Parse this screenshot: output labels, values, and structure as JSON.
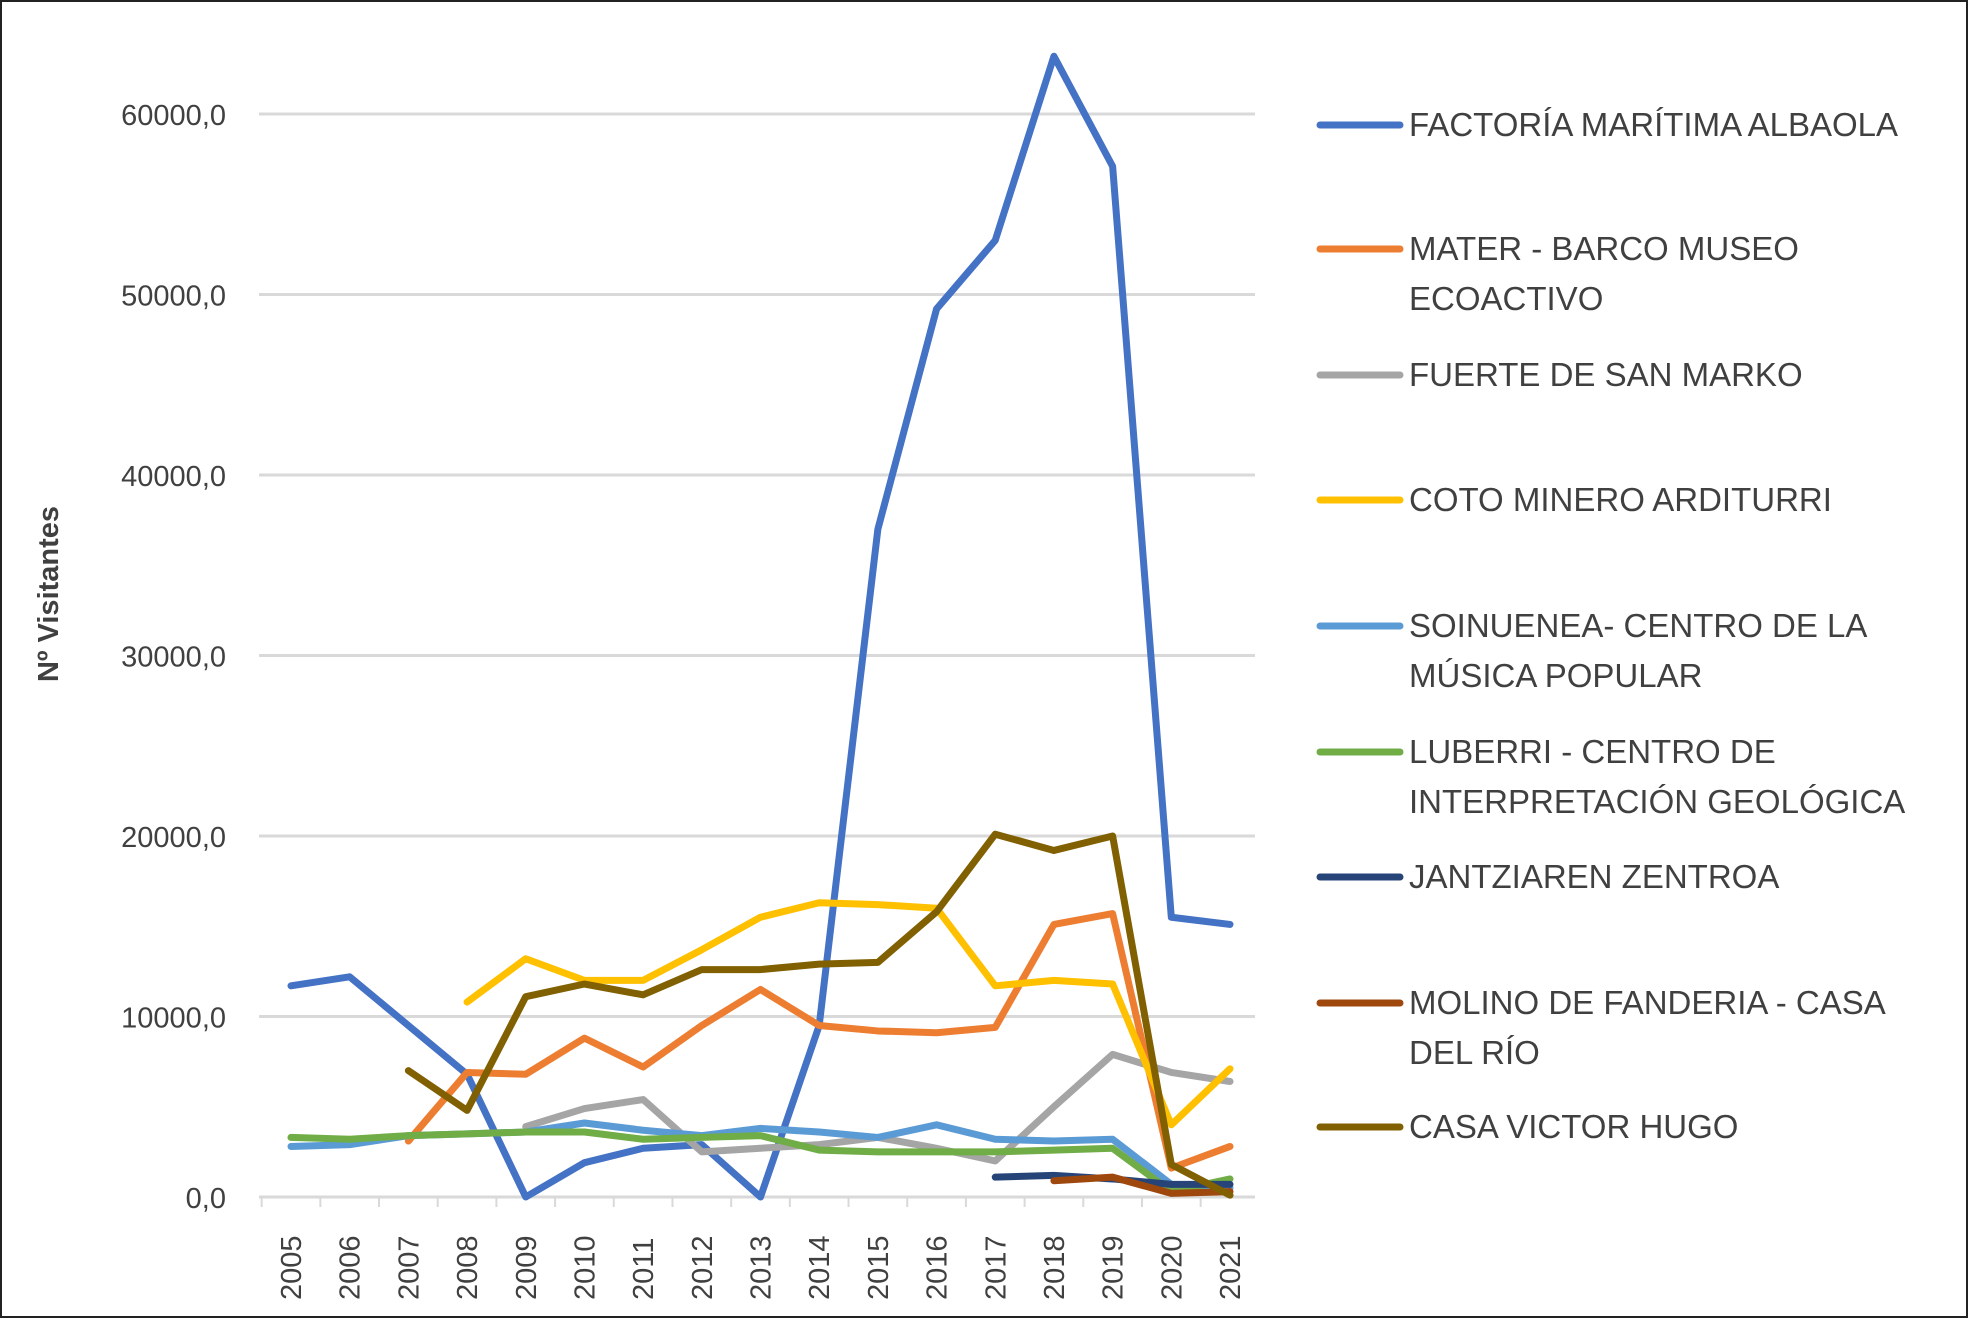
{
  "chart_data": {
    "type": "line",
    "title": "",
    "xlabel": "",
    "ylabel": "Nº Visitantes",
    "ylim": [
      0,
      63500
    ],
    "yticks": [
      "0,0",
      "10000,0",
      "20000,0",
      "30000,0",
      "40000,0",
      "50000,0",
      "60000,0"
    ],
    "ytick_values": [
      0,
      10000,
      20000,
      30000,
      40000,
      50000,
      60000
    ],
    "grid": true,
    "legend_position": "right",
    "x": [
      "2005",
      "2006",
      "2007",
      "2008",
      "2009",
      "2010",
      "2011",
      "2012",
      "2013",
      "2014",
      "2015",
      "2016",
      "2017",
      "2018",
      "2019",
      "2020",
      "2021"
    ],
    "series": [
      {
        "name": "FACTORÍA MARÍTIMA ALBAOLA",
        "color": "#4472C4",
        "values": [
          11700,
          12200,
          9500,
          6800,
          0,
          1900,
          2700,
          2900,
          0,
          9500,
          37000,
          49200,
          53000,
          63200,
          57100,
          15500,
          15100
        ]
      },
      {
        "name": "MATER - BARCO MUSEO ECOACTIVO",
        "color": "#ED7D31",
        "values": [
          null,
          null,
          3100,
          6900,
          6800,
          8800,
          7200,
          9500,
          11500,
          9500,
          9200,
          9100,
          9400,
          15100,
          15700,
          1600,
          2800
        ]
      },
      {
        "name": "FUERTE DE SAN MARKO",
        "color": "#A5A5A5",
        "values": [
          null,
          null,
          null,
          null,
          3900,
          4900,
          5400,
          2500,
          2700,
          2900,
          3300,
          2700,
          2000,
          5000,
          7900,
          6900,
          6400
        ]
      },
      {
        "name": "COTO MINERO ARDITURRI",
        "color": "#FFC000",
        "values": [
          null,
          null,
          null,
          10800,
          13200,
          12000,
          12000,
          13700,
          15500,
          16300,
          16200,
          16000,
          11700,
          12000,
          11800,
          4000,
          7100
        ]
      },
      {
        "name": "SOINUENEA- CENTRO DE LA MÚSICA POPULAR",
        "color": "#5B9BD5",
        "values": [
          2800,
          2900,
          3400,
          3500,
          3600,
          4100,
          3700,
          3400,
          3800,
          3600,
          3300,
          4000,
          3200,
          3100,
          3200,
          700,
          500
        ]
      },
      {
        "name": "LUBERRI - CENTRO DE INTERPRETACIÓN GEOLÓGICA",
        "color": "#70AD47",
        "values": [
          3300,
          3200,
          3400,
          3500,
          3600,
          3600,
          3200,
          3300,
          3400,
          2600,
          2500,
          2500,
          2500,
          2600,
          2700,
          300,
          1000
        ]
      },
      {
        "name": "JANTZIAREN ZENTROA",
        "color": "#264478",
        "values": [
          null,
          null,
          null,
          null,
          null,
          null,
          null,
          null,
          null,
          null,
          null,
          null,
          1100,
          1200,
          1000,
          700,
          700
        ]
      },
      {
        "name": "MOLINO DE FANDERIA - CASA DEL RÍO",
        "color": "#9E480E",
        "values": [
          null,
          null,
          null,
          null,
          null,
          null,
          null,
          null,
          null,
          null,
          null,
          null,
          null,
          900,
          1100,
          200,
          300
        ]
      },
      {
        "name": "CASA VICTOR HUGO",
        "color": "#806000",
        "values": [
          null,
          null,
          7000,
          4800,
          11100,
          11800,
          11200,
          12600,
          12600,
          12900,
          13000,
          15800,
          20100,
          19200,
          20000,
          1800,
          100
        ]
      }
    ],
    "legend_lines": [
      [
        "FACTORÍA MARÍTIMA ALBAOLA"
      ],
      [
        "MATER - BARCO MUSEO",
        "ECOACTIVO"
      ],
      [
        "FUERTE DE SAN MARKO"
      ],
      [
        "COTO MINERO ARDITURRI"
      ],
      [
        "SOINUENEA- CENTRO DE LA",
        "MÚSICA POPULAR"
      ],
      [
        "LUBERRI - CENTRO DE",
        "INTERPRETACIÓN GEOLÓGICA"
      ],
      [
        "JANTZIAREN ZENTROA"
      ],
      [
        "MOLINO DE FANDERIA - CASA",
        "DEL RÍO"
      ],
      [
        "CASA VICTOR HUGO"
      ]
    ]
  }
}
